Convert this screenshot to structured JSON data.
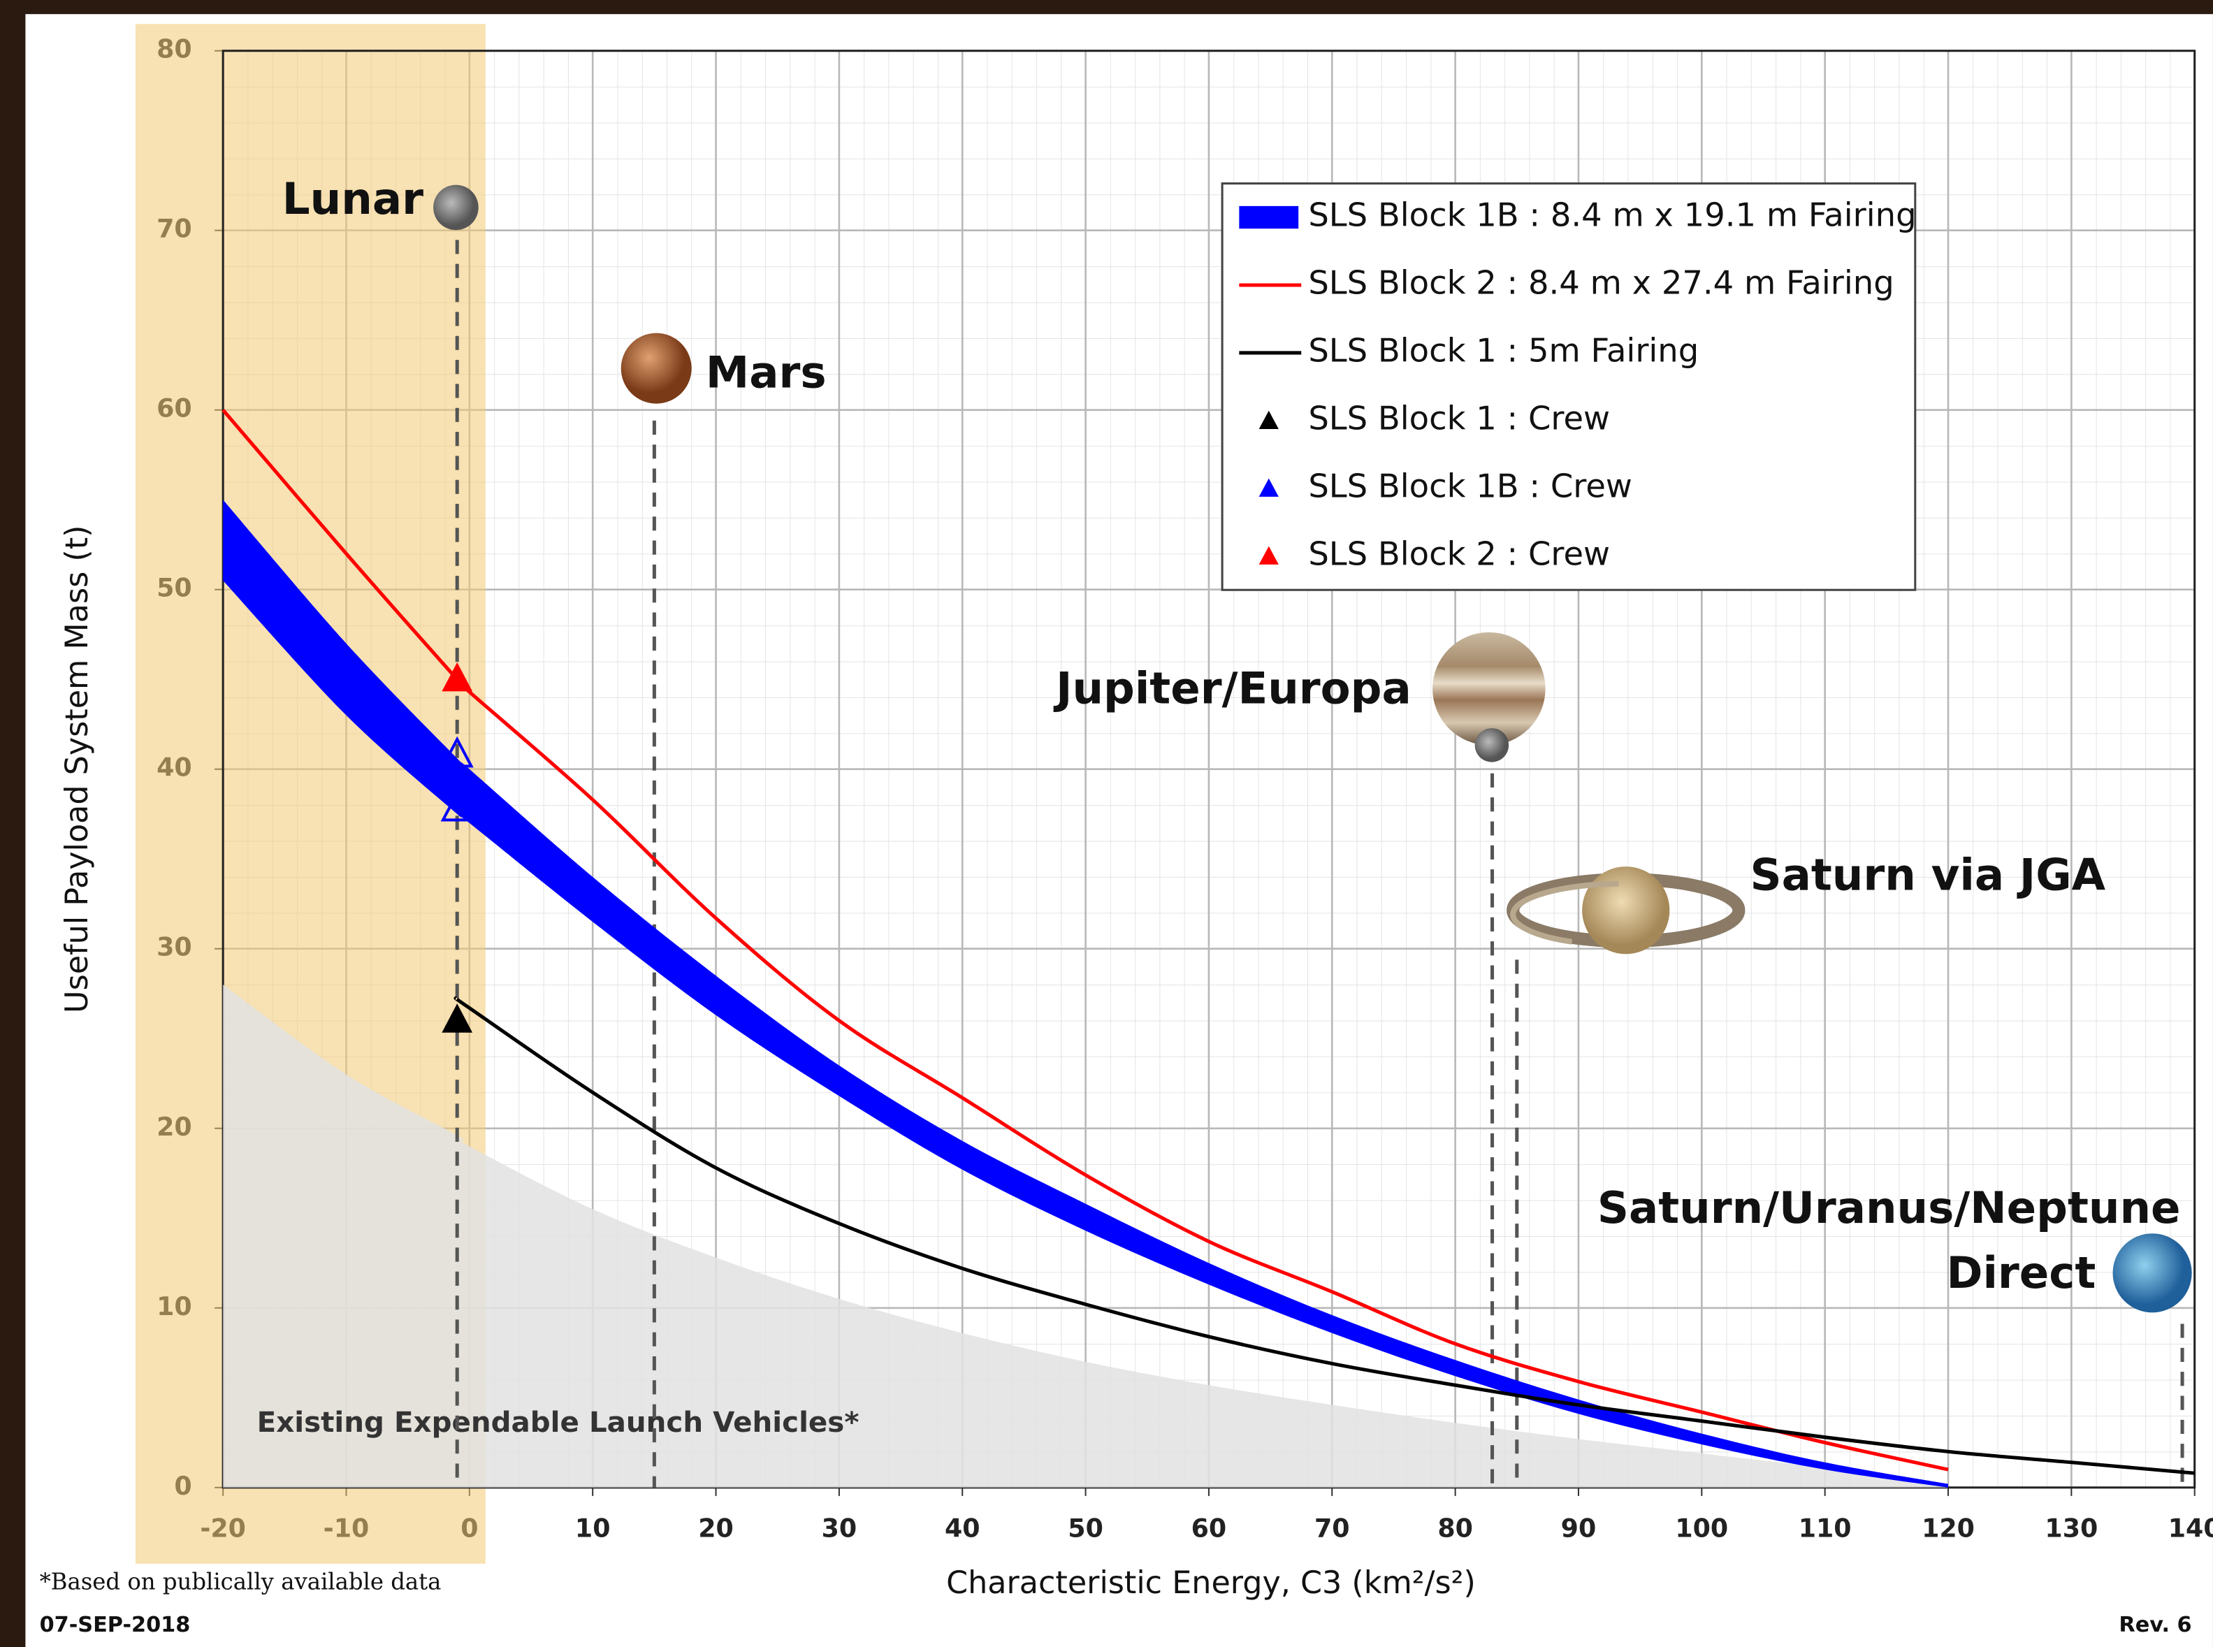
{
  "chart_data": {
    "type": "line",
    "xlabel": "Characteristic Energy, C3 (km²/s²)",
    "ylabel": "Useful Payload System Mass (t)",
    "x": [
      -20,
      -10,
      -1,
      0,
      10,
      20,
      30,
      40,
      50,
      60,
      70,
      80,
      90,
      100,
      110,
      120,
      130,
      140
    ],
    "xlim": [
      -20,
      140
    ],
    "xticks": [
      -20,
      -10,
      0,
      10,
      20,
      30,
      40,
      50,
      60,
      70,
      80,
      90,
      100,
      110,
      120,
      130,
      140
    ],
    "ylim": [
      0,
      80
    ],
    "yticks": [
      0,
      10,
      20,
      30,
      40,
      50,
      60,
      70,
      80
    ],
    "grid": true,
    "minor_grid": true,
    "legend": "upper right",
    "series": [
      {
        "name": "SLS Block 1B : 8.4 m x 19.1 m Fairing",
        "color": "#0000ff",
        "style": "band",
        "values": [
          50.5,
          43,
          37.5,
          37,
          31.5,
          26.3,
          21.8,
          17.7,
          14.3,
          11.3,
          8.6,
          6.2,
          4.1,
          2.4,
          1,
          0,
          null,
          null
        ],
        "upper": [
          55,
          47,
          40.6,
          40,
          34,
          28.5,
          23.5,
          19.3,
          15.8,
          12.5,
          9.6,
          7.1,
          4.9,
          3,
          1.4,
          0.2,
          null,
          null
        ]
      },
      {
        "name": "SLS Block 2 : 8.4 m x 27.4 m Fairing",
        "color": "#ff0000",
        "style": "line",
        "values": [
          60,
          52,
          45,
          44.3,
          38.3,
          31.7,
          26,
          21.7,
          17.4,
          13.7,
          10.9,
          8,
          5.9,
          4.2,
          2.5,
          1,
          null,
          null
        ]
      },
      {
        "name": "SLS Block 1 : 5m Fairing",
        "color": "#000000",
        "style": "line",
        "values": [
          null,
          null,
          27.2,
          26.7,
          22,
          17.8,
          14.7,
          12.2,
          10.2,
          8.4,
          6.9,
          5.7,
          4.6,
          3.7,
          2.8,
          2,
          1.4,
          0.8
        ]
      }
    ],
    "markers": [
      {
        "name": "SLS Block 1 : Crew",
        "color": "#000000",
        "x": [
          -1
        ],
        "y": [
          26
        ]
      },
      {
        "name": "SLS Block 1B : Crew",
        "color": "#0000ff",
        "x": [
          -1,
          -1
        ],
        "y": [
          40.8,
          37.8
        ]
      },
      {
        "name": "SLS Block 2 : Crew",
        "color": "#ff0000",
        "x": [
          -1
        ],
        "y": [
          45
        ]
      }
    ],
    "elv": {
      "label": "Existing Expendable Launch Vehicles*",
      "color": "#e2e2e2",
      "values": [
        28,
        23,
        19.6,
        19,
        15.5,
        12.8,
        10.5,
        8.6,
        7,
        5.7,
        4.6,
        3.6,
        2.7,
        1.9,
        1.1,
        0.2,
        null,
        null
      ]
    },
    "destinations": [
      {
        "label": [
          "Lunar"
        ],
        "x": -1
      },
      {
        "label": [
          "Mars"
        ],
        "x": 15
      },
      {
        "label": [
          "Jupiter/Europa"
        ],
        "x": 83
      },
      {
        "label": [
          "Saturn via JGA"
        ],
        "x": 85
      },
      {
        "label": [
          "Saturn/Uranus/Neptune",
          "Direct"
        ],
        "x": 139
      }
    ],
    "footnote": "*Based on publically available data",
    "date": "07-SEP-2018",
    "revision": "Rev. 6"
  }
}
